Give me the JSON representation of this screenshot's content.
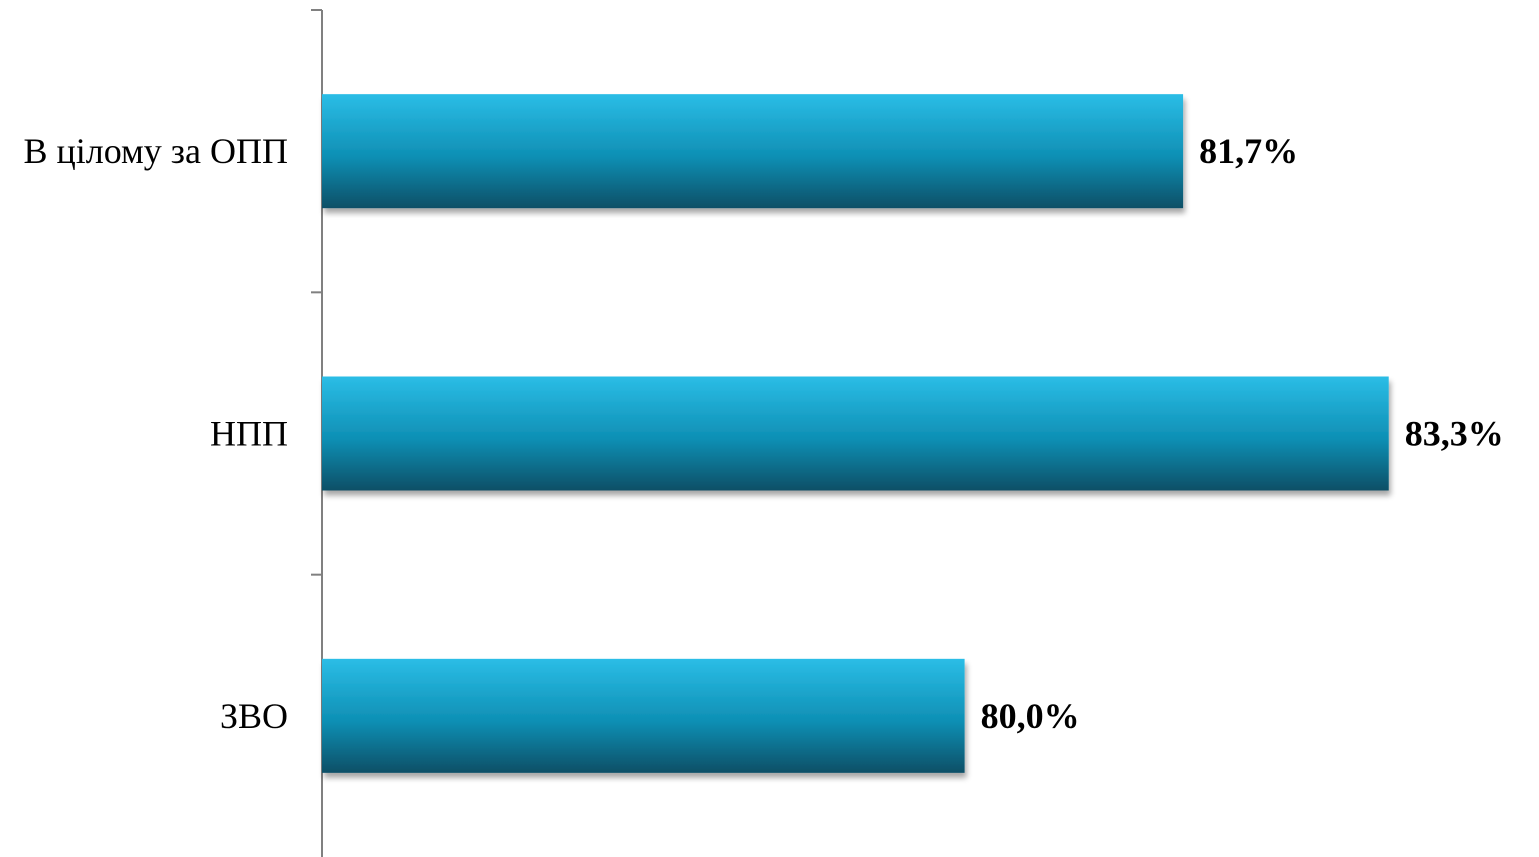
{
  "chart_data": {
    "type": "bar",
    "orientation": "horizontal",
    "categories": [
      "В цілому за ОПП",
      "НПП",
      "ЗВО"
    ],
    "values": [
      81.7,
      83.3,
      80.0
    ],
    "value_labels": [
      "81,7%",
      "83,3%",
      "80,0%"
    ],
    "xlim": [
      75.0,
      83.45
    ],
    "grid": false,
    "legend": "none",
    "colors": {
      "bar_top": "#2bbde6",
      "bar_mid": "#0e8fb4",
      "bar_bottom": "#0a4f66",
      "axis": "#808080"
    }
  }
}
